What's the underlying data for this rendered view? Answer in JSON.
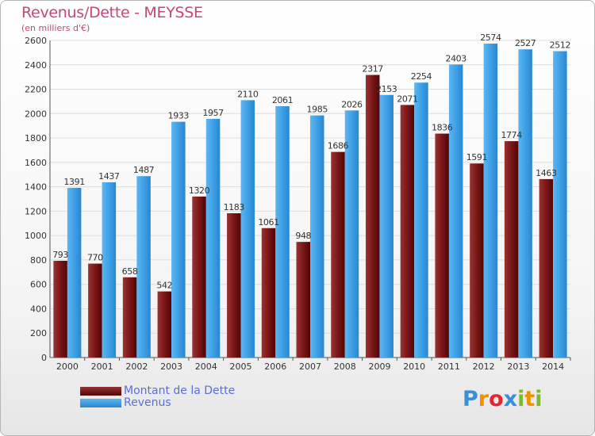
{
  "chart_data": {
    "type": "bar",
    "title": "Revenus/Dette - MEYSSE",
    "subtitle": "(en milliers d'€)",
    "categories": [
      "2000",
      "2001",
      "2002",
      "2003",
      "2004",
      "2005",
      "2006",
      "2007",
      "2008",
      "2009",
      "2010",
      "2011",
      "2012",
      "2013",
      "2014"
    ],
    "series": [
      {
        "name": "Montant de la Dette",
        "color": "#7a1414",
        "values": [
          793,
          770,
          658,
          542,
          1320,
          1183,
          1061,
          948,
          1686,
          2317,
          2071,
          1836,
          1591,
          1774,
          1463
        ],
        "labels": [
          "793",
          "770",
          "658",
          "542",
          "1320",
          "1183",
          "1061",
          "948",
          "1686",
          "2317",
          "2071",
          "1836",
          "1591",
          "1774",
          "1463"
        ]
      },
      {
        "name": "Revenus",
        "color": "#3fa0e6",
        "values": [
          1391,
          1437,
          1487,
          1933,
          1957,
          2110,
          2061,
          1985,
          2026,
          2153,
          2254,
          2403,
          2574,
          2527,
          2512
        ],
        "labels": [
          "1391",
          "1437",
          "1487",
          "1933",
          "1957",
          "2110",
          "2061",
          "1985",
          "2026",
          "2153",
          "2254",
          "2403",
          "2574",
          "2527",
          "2512"
        ]
      }
    ],
    "ylim": [
      0,
      2600
    ],
    "yticks": [
      0,
      200,
      400,
      600,
      800,
      1000,
      1200,
      1400,
      1600,
      1800,
      2000,
      2200,
      2400,
      2600
    ],
    "grid": true,
    "legend_position": "bottom-left"
  },
  "logo": {
    "text": "Proxiti",
    "letters": [
      {
        "ch": "P",
        "color": "#3a8fd8"
      },
      {
        "ch": "r",
        "color": "#f29100"
      },
      {
        "ch": "o",
        "color": "#e2262f"
      },
      {
        "ch": "x",
        "color": "#3a8fd8"
      },
      {
        "ch": "i",
        "color": "#7cb832"
      },
      {
        "ch": "t",
        "color": "#f29100"
      },
      {
        "ch": "i",
        "color": "#7cb832"
      }
    ]
  }
}
